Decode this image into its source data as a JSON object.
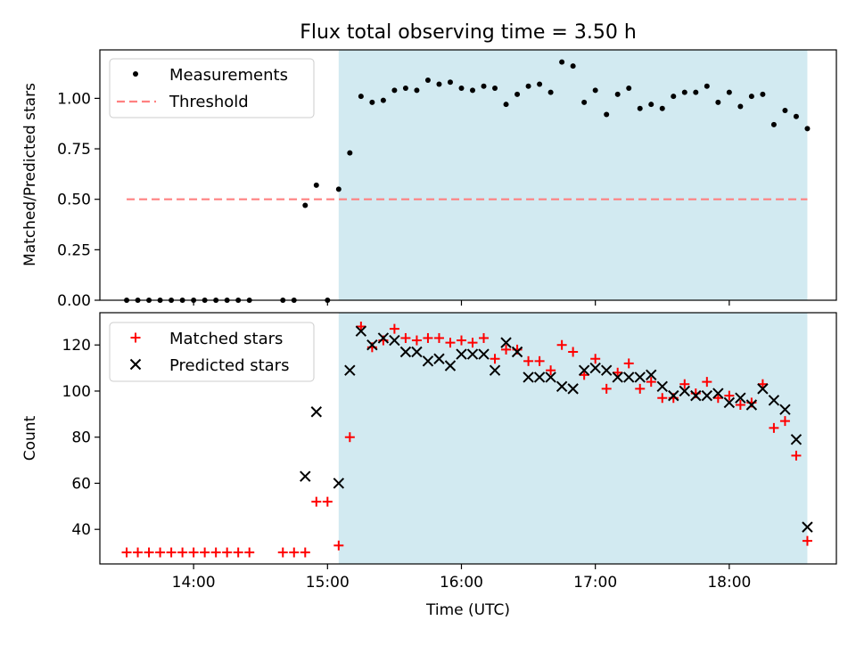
{
  "figure": {
    "title": "Flux total observing time = 3.50 h",
    "xlabel": "Time (UTC)"
  },
  "colors": {
    "shade": "#add8e6",
    "threshold": "#ff8080",
    "matched": "#ff0000",
    "predicted": "#000000",
    "points": "#000000"
  },
  "chart_data": [
    {
      "type": "scatter",
      "ylabel": "Matched/Predicted stars",
      "ylim": [
        0,
        1.24
      ],
      "xlim": [
        "13:18",
        "18:48"
      ],
      "yticks": [
        "0.00",
        "0.25",
        "0.50",
        "0.75",
        "1.00"
      ],
      "yticks_values": [
        0,
        0.25,
        0.5,
        0.75,
        1.0
      ],
      "legend_position": "top-left",
      "shaded_span": [
        "15:05",
        "18:35"
      ],
      "threshold": {
        "name": "Threshold",
        "y": 0.5,
        "x_range": [
          "13:30",
          "18:35"
        ]
      },
      "series": [
        {
          "name": "Measurements",
          "x": [
            "13:30",
            "13:35",
            "13:40",
            "13:45",
            "13:50",
            "13:55",
            "14:00",
            "14:05",
            "14:10",
            "14:15",
            "14:20",
            "14:25",
            "14:40",
            "14:45",
            "15:00",
            "14:50",
            "14:55",
            "15:05",
            "15:10",
            "15:15",
            "15:20",
            "15:25",
            "15:30",
            "15:35",
            "15:40",
            "15:45",
            "15:50",
            "15:55",
            "16:00",
            "16:05",
            "16:10",
            "16:15",
            "16:20",
            "16:25",
            "16:30",
            "16:35",
            "16:40",
            "16:45",
            "16:50",
            "16:55",
            "17:00",
            "17:05",
            "17:10",
            "17:15",
            "17:20",
            "17:25",
            "17:30",
            "17:35",
            "17:40",
            "17:45",
            "17:50",
            "17:55",
            "18:00",
            "18:05",
            "18:10",
            "18:15",
            "18:20",
            "18:25",
            "18:30",
            "18:35"
          ],
          "y": [
            0,
            0,
            0,
            0,
            0,
            0,
            0,
            0,
            0,
            0,
            0,
            0,
            0,
            0,
            0,
            0.47,
            0.57,
            0.55,
            0.73,
            1.01,
            0.98,
            0.99,
            1.04,
            1.05,
            1.04,
            1.09,
            1.07,
            1.08,
            1.05,
            1.04,
            1.06,
            1.05,
            0.97,
            1.02,
            1.06,
            1.07,
            1.03,
            1.18,
            1.16,
            0.98,
            1.04,
            0.92,
            1.02,
            1.05,
            0.95,
            0.97,
            0.95,
            1.01,
            1.03,
            1.03,
            1.06,
            0.98,
            1.03,
            0.96,
            1.01,
            1.02,
            0.87,
            0.94,
            0.91,
            0.85
          ]
        }
      ]
    },
    {
      "type": "scatter",
      "ylabel": "Count",
      "ylim": [
        25,
        134
      ],
      "xlim": [
        "13:18",
        "18:48"
      ],
      "xticks": [
        "14:00",
        "15:00",
        "16:00",
        "17:00",
        "18:00"
      ],
      "yticks": [
        "40",
        "60",
        "80",
        "100",
        "120"
      ],
      "yticks_values": [
        40,
        60,
        80,
        100,
        120
      ],
      "legend_position": "top-left",
      "shaded_span": [
        "15:05",
        "18:35"
      ],
      "series": [
        {
          "name": "Matched stars",
          "x": [
            "13:30",
            "13:35",
            "13:40",
            "13:45",
            "13:50",
            "13:55",
            "14:00",
            "14:05",
            "14:10",
            "14:15",
            "14:20",
            "14:25",
            "14:40",
            "14:45",
            "14:50",
            "14:55",
            "15:00",
            "15:05",
            "15:10",
            "15:15",
            "15:20",
            "15:25",
            "15:30",
            "15:35",
            "15:40",
            "15:45",
            "15:50",
            "15:55",
            "16:00",
            "16:05",
            "16:10",
            "16:15",
            "16:20",
            "16:25",
            "16:30",
            "16:35",
            "16:40",
            "16:45",
            "16:50",
            "16:55",
            "17:00",
            "17:05",
            "17:10",
            "17:15",
            "17:20",
            "17:25",
            "17:30",
            "17:35",
            "17:40",
            "17:45",
            "17:50",
            "17:55",
            "18:00",
            "18:05",
            "18:10",
            "18:15",
            "18:20",
            "18:25",
            "18:30",
            "18:35"
          ],
          "y": [
            30,
            30,
            30,
            30,
            30,
            30,
            30,
            30,
            30,
            30,
            30,
            30,
            30,
            30,
            30,
            52,
            52,
            33,
            80,
            128,
            119,
            122,
            127,
            123,
            122,
            123,
            123,
            121,
            122,
            121,
            123,
            114,
            118,
            118,
            113,
            113,
            109,
            120,
            117,
            107,
            114,
            101,
            108,
            112,
            101,
            104,
            97,
            97,
            103,
            99,
            104,
            97,
            98,
            94,
            95,
            103,
            84,
            87,
            72,
            35
          ]
        },
        {
          "name": "Predicted stars",
          "x": [
            "14:50",
            "14:55",
            "15:05",
            "15:10",
            "15:15",
            "15:20",
            "15:25",
            "15:30",
            "15:35",
            "15:40",
            "15:45",
            "15:50",
            "15:55",
            "16:00",
            "16:05",
            "16:10",
            "16:15",
            "16:20",
            "16:25",
            "16:30",
            "16:35",
            "16:40",
            "16:45",
            "16:50",
            "16:55",
            "17:00",
            "17:05",
            "17:10",
            "17:15",
            "17:20",
            "17:25",
            "17:30",
            "17:35",
            "17:40",
            "17:45",
            "17:50",
            "17:55",
            "18:00",
            "18:05",
            "18:10",
            "18:15",
            "18:20",
            "18:25",
            "18:30",
            "18:35"
          ],
          "y": [
            63,
            91,
            60,
            109,
            126,
            120,
            123,
            122,
            117,
            117,
            113,
            114,
            111,
            116,
            116,
            116,
            109,
            121,
            117,
            106,
            106,
            106,
            102,
            101,
            109,
            110,
            109,
            106,
            106,
            106,
            107,
            102,
            98,
            100,
            98,
            98,
            99,
            95,
            97,
            94,
            101,
            96,
            92,
            79,
            41
          ]
        }
      ]
    }
  ]
}
